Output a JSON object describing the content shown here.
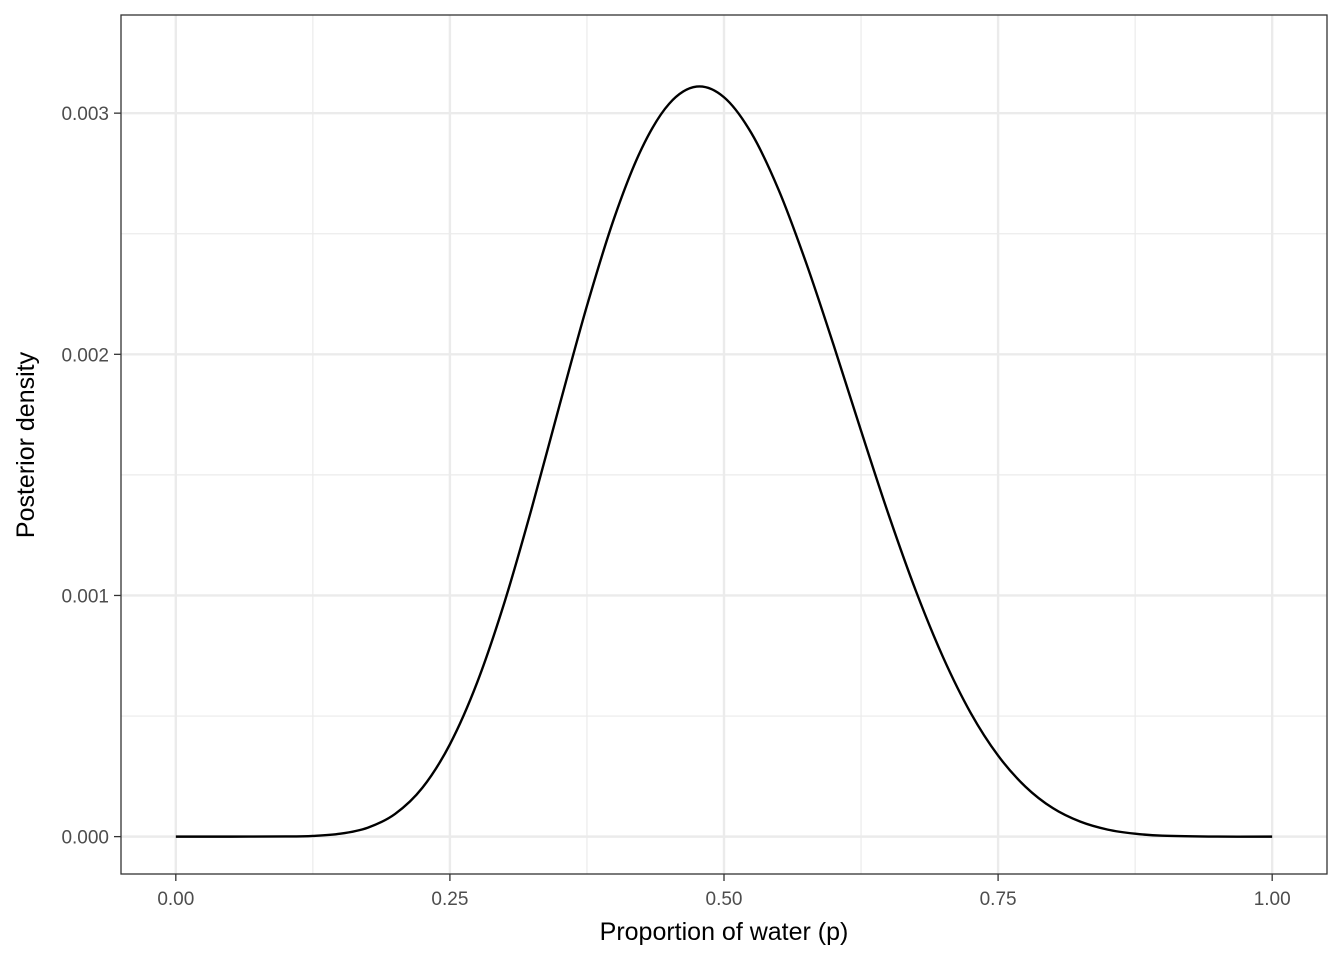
{
  "chart_data": {
    "type": "line",
    "title": "",
    "xlabel": "Proportion of water (p)",
    "ylabel": "Posterior density",
    "xlim": [
      -0.05,
      1.05
    ],
    "ylim": [
      -0.000155,
      0.003407
    ],
    "x_ticks": [
      0,
      0.25,
      0.5,
      0.75,
      1
    ],
    "x_tick_labels": [
      "0.00",
      "0.25",
      "0.50",
      "0.75",
      "1.00"
    ],
    "y_ticks": [
      0,
      0.001,
      0.002,
      0.003
    ],
    "y_tick_labels": [
      "0.000",
      "0.001",
      "0.002",
      "0.003"
    ],
    "grid": true,
    "legend": "none",
    "series": [
      {
        "color": "#000000",
        "x": [
          0.0,
          0.05,
          0.1,
          0.125,
          0.15,
          0.175,
          0.2,
          0.225,
          0.25,
          0.275,
          0.3,
          0.325,
          0.35,
          0.375,
          0.4,
          0.425,
          0.45,
          0.475,
          0.5,
          0.525,
          0.55,
          0.575,
          0.6,
          0.625,
          0.65,
          0.675,
          0.7,
          0.725,
          0.75,
          0.775,
          0.8,
          0.825,
          0.85,
          0.875,
          0.9,
          0.95,
          1.0
        ],
        "y": [
          0.0,
          0.0,
          6e-07,
          3e-06,
          1.2e-05,
          3.7e-05,
          9.4e-05,
          0.000203,
          0.000383,
          0.000641,
          0.000975,
          0.001368,
          0.001789,
          0.002201,
          0.002567,
          0.002854,
          0.003039,
          0.00311,
          0.003066,
          0.002917,
          0.00268,
          0.002378,
          0.002038,
          0.001683,
          0.001337,
          0.001019,
          0.000742,
          0.000513,
          0.000336,
          0.000207,
          0.000118,
          6.2e-05,
          2.9e-05,
          1.2e-05,
          4e-06,
          1e-07,
          0.0
        ]
      }
    ]
  }
}
